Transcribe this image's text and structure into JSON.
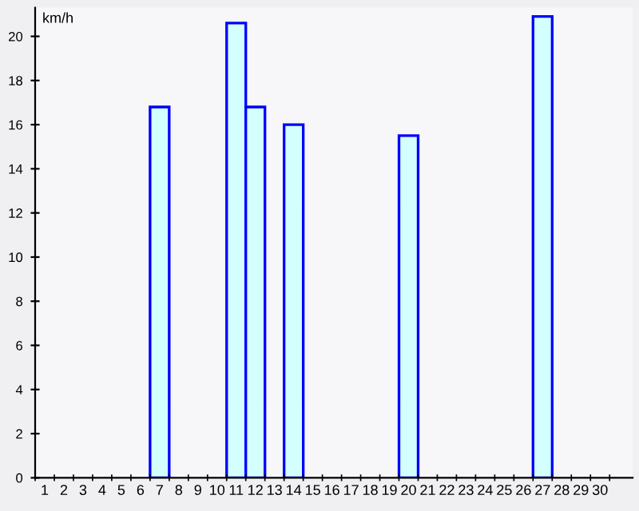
{
  "chart_data": {
    "type": "bar",
    "ylabel": "km/h",
    "categories": [
      "1",
      "2",
      "3",
      "4",
      "5",
      "6",
      "7",
      "8",
      "9",
      "10",
      "11",
      "12",
      "13",
      "14",
      "15",
      "16",
      "17",
      "18",
      "19",
      "20",
      "21",
      "22",
      "23",
      "24",
      "25",
      "26",
      "27",
      "28",
      "29",
      "30"
    ],
    "values": [
      null,
      null,
      null,
      null,
      null,
      null,
      16.8,
      null,
      null,
      null,
      20.6,
      16.8,
      null,
      16.0,
      null,
      null,
      null,
      null,
      null,
      15.5,
      null,
      null,
      null,
      null,
      null,
      null,
      20.9,
      null,
      null,
      null
    ],
    "color": "#d4ffff",
    "ylim": [
      0,
      21.3
    ],
    "yticks": [
      0,
      2,
      4,
      6,
      8,
      10,
      12,
      14,
      16,
      18,
      20
    ],
    "grid": false,
    "legend": false
  }
}
